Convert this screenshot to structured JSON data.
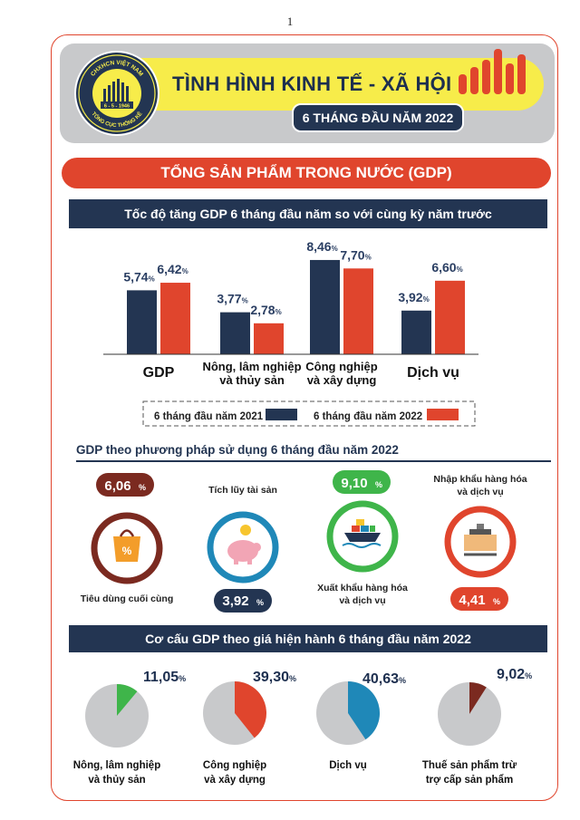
{
  "page_number": "1",
  "header": {
    "logo_text_top": "CHXHCN VIỆT NAM",
    "logo_date": "6 - 5 - 1946",
    "logo_text_bottom": "TỔNG CỤC THỐNG KÊ",
    "title": "TÌNH HÌNH KINH TẾ - XÃ HỘI",
    "subtitle": "6 THÁNG ĐẦU NĂM 2022"
  },
  "section_title": "TỔNG SẢN PHẨM TRONG NƯỚC (GDP)",
  "colors": {
    "navy": "#233552",
    "red": "#e0452d",
    "green": "#3fb54a",
    "maroon": "#7b2a20",
    "yellow": "#f7ec4a",
    "blue": "#1f88b8"
  },
  "chart_data": [
    {
      "type": "bar",
      "title": "Tốc độ tăng GDP 6 tháng đầu năm so với cùng kỳ năm trước",
      "categories": [
        "GDP",
        "Nông, lâm nghiệp|và thủy sản",
        "Công nghiệp|và xây dựng",
        "Dịch vụ"
      ],
      "series": [
        {
          "name": "6 tháng đầu năm 2021",
          "values": [
            5.74,
            3.77,
            8.46,
            3.92
          ],
          "labels": [
            "5,74",
            "3,77",
            "8,46",
            "3,92"
          ]
        },
        {
          "name": "6 tháng đầu năm 2022",
          "values": [
            6.42,
            2.78,
            7.7,
            6.6
          ],
          "labels": [
            "6,42",
            "2,78",
            "7,70",
            "6,60"
          ]
        }
      ],
      "unit": "%",
      "legend": "bottom"
    },
    {
      "type": "pie",
      "title": "Cơ cấu GDP theo giá hiện hành 6 tháng đầu năm 2022",
      "categories": [
        "Nông, lâm nghiệp|và thủy sản",
        "Công nghiệp|và xây dựng",
        "Dịch vụ",
        "Thuế sản phẩm trừ|trợ cấp sản phẩm"
      ],
      "values": [
        11.05,
        39.3,
        40.63,
        9.02
      ],
      "labels": [
        "11,05",
        "39,30",
        "40,63",
        "9,02"
      ],
      "unit": "%"
    }
  ],
  "usage": {
    "heading": "GDP theo phương pháp sử dụng 6 tháng đầu năm 2022",
    "items": [
      {
        "label": "Tiêu dùng cuối cùng",
        "value": "6,06",
        "unit": "%",
        "icon": "shopping-bag-icon"
      },
      {
        "label": "Tích lũy tài sản",
        "value": "3,92",
        "unit": "%",
        "icon": "piggy-bank-icon"
      },
      {
        "label": "Xuất khẩu hàng hóa|và dịch vụ",
        "value": "9,10",
        "unit": "%",
        "icon": "cargo-ship-icon"
      },
      {
        "label": "Nhập khẩu hàng hóa|và dịch vụ",
        "value": "4,41",
        "unit": "%",
        "icon": "warehouse-scale-icon"
      }
    ]
  }
}
